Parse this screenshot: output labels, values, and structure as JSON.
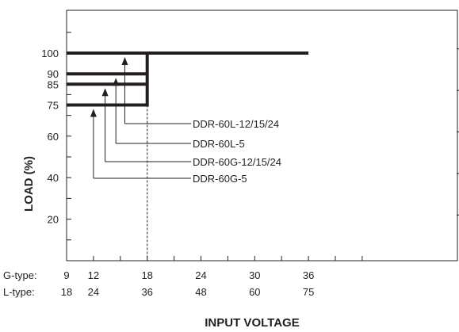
{
  "chart_data": {
    "type": "line",
    "title": "",
    "xlabel": "INPUT VOLTAGE",
    "ylabel": "LOAD (%)",
    "x_axis_rows": [
      {
        "label": "G-type:",
        "ticks": [
          "9",
          "12",
          "18",
          "24",
          "30",
          "36"
        ]
      },
      {
        "label": "L-type:",
        "ticks": [
          "18",
          "24",
          "36",
          "48",
          "60",
          "75"
        ]
      }
    ],
    "xlim": [
      9,
      45
    ],
    "ylim": [
      0,
      117
    ],
    "yticks": [
      "100",
      "90",
      "85",
      "75",
      "60",
      "40",
      "20"
    ],
    "grid": false,
    "series": [
      {
        "name": "DDR-60L-12/15/24",
        "g_voltage": [
          9,
          18,
          36
        ],
        "load": [
          100,
          100,
          100
        ],
        "arrow_at_g_voltage": 15.5
      },
      {
        "name": "DDR-60L-5",
        "g_voltage": [
          9,
          18,
          36
        ],
        "load": [
          90,
          90,
          100
        ],
        "arrow_at_g_voltage": 14.5
      },
      {
        "name": "DDR-60G-12/15/24",
        "g_voltage": [
          9,
          18,
          36
        ],
        "load": [
          85,
          85,
          100
        ],
        "arrow_at_g_voltage": 13.3
      },
      {
        "name": "DDR-60G-5",
        "g_voltage": [
          9,
          18,
          36
        ],
        "load": [
          75,
          75,
          100
        ],
        "arrow_at_g_voltage": 12
      }
    ],
    "step_at_g_voltage": 18,
    "colors": {
      "line": "#231f20",
      "background": "#ffffff"
    }
  }
}
